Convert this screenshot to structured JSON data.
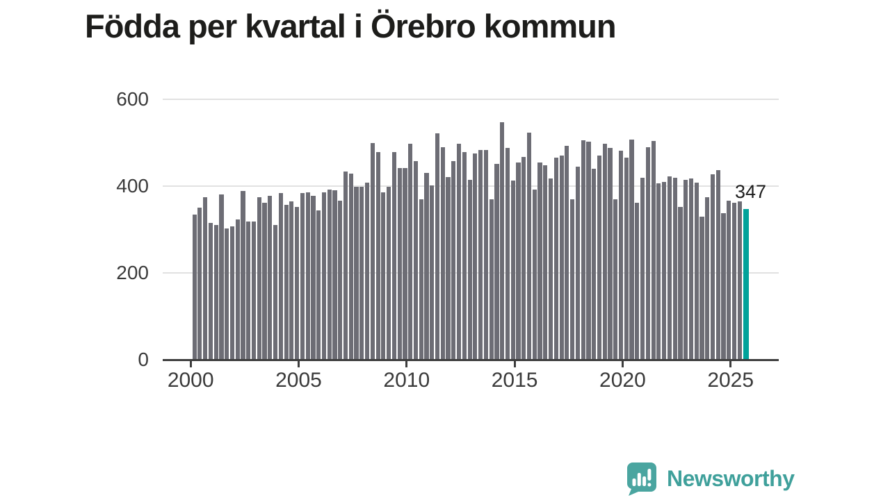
{
  "title": "Födda per kvartal i Örebro kommun",
  "annotation": {
    "label": "347"
  },
  "logo": {
    "text": "Newsworthy",
    "icon": "newsworthy-speech-bubble-chart-icon",
    "color": "#4aa5a0"
  },
  "colors": {
    "background": "#ffffff",
    "bar": "#6d6d75",
    "highlight": "#00a29a",
    "gridline": "#e1e1e1",
    "axis": "#3e3e3e",
    "axis_text": "#3a3a3a",
    "title_text": "#1d1d1b"
  },
  "chart_data": {
    "type": "bar",
    "title": "Födda per kvartal i Örebro kommun",
    "frequency": "quarterly",
    "start_quarter": "2000Q1",
    "end_quarter": "2025Q3",
    "x_axis": {
      "tick_labels": [
        "2000",
        "2005",
        "2010",
        "2015",
        "2020",
        "2025"
      ],
      "tick_years": [
        2000,
        2005,
        2010,
        2015,
        2020,
        2025
      ]
    },
    "y_axis": {
      "ticks": [
        0,
        200,
        400,
        600
      ],
      "tick_labels": [
        "0",
        "200",
        "400",
        "600"
      ],
      "range": [
        0,
        620
      ],
      "gridlines": [
        200,
        400,
        600
      ]
    },
    "legend": "none",
    "values": [
      334,
      351,
      374,
      316,
      311,
      381,
      302,
      307,
      323,
      389,
      319,
      319,
      375,
      362,
      378,
      311,
      384,
      357,
      365,
      352,
      384,
      386,
      377,
      344,
      385,
      392,
      390,
      366,
      433,
      429,
      398,
      398,
      408,
      499,
      478,
      386,
      398,
      478,
      442,
      442,
      497,
      457,
      369,
      430,
      402,
      522,
      490,
      421,
      458,
      497,
      478,
      414,
      476,
      483,
      483,
      369,
      451,
      547,
      488,
      413,
      454,
      467,
      523,
      392,
      455,
      448,
      418,
      466,
      470,
      493,
      370,
      445,
      506,
      502,
      440,
      470,
      497,
      488,
      370,
      481,
      466,
      508,
      362,
      419,
      490,
      504,
      406,
      409,
      422,
      419,
      352,
      415,
      418,
      408,
      330,
      375,
      428,
      437,
      338,
      366,
      362,
      365,
      347
    ],
    "highlight": {
      "index": 102,
      "quarter": "2025Q3",
      "value": 347,
      "label": "347",
      "color": "#00a29a"
    }
  }
}
